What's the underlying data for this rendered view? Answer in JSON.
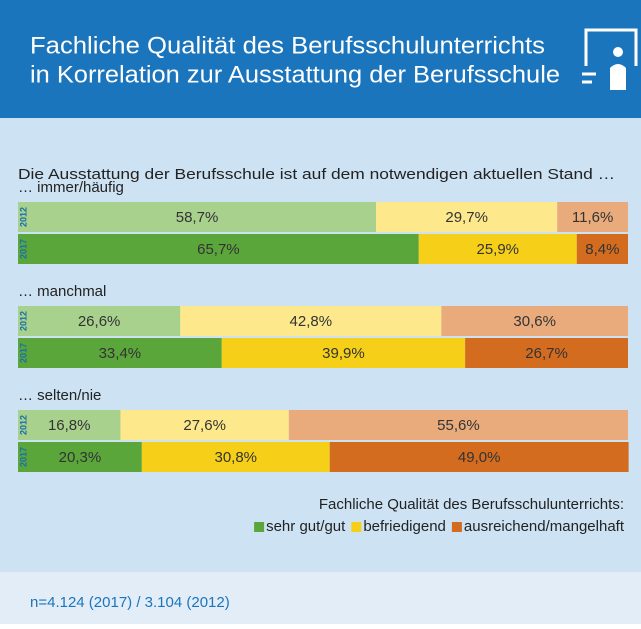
{
  "chart_data": {
    "type": "stacked_bar_horizontal",
    "title": [
      "Fachliche Qualität des Berufsschulunterrichts",
      "in Korrelation zur Ausstattung der Berufsschule"
    ],
    "subtitle": "Die Ausstattung der Berufsschule ist auf dem notwendigen aktuellen Stand …",
    "categories": [
      "… immer/häufig",
      "… manchmal",
      "… selten/nie"
    ],
    "groups": [
      "2012",
      "2017"
    ],
    "xlim": [
      0,
      100
    ],
    "series": [
      {
        "name": "sehr gut/gut",
        "colors": [
          "#a9d18e",
          "#5ba63b"
        ],
        "values": [
          [
            58.7,
            65.7
          ],
          [
            26.6,
            33.4
          ],
          [
            16.8,
            20.3
          ]
        ],
        "value_labels": [
          [
            "58,7%",
            "65,7%"
          ],
          [
            "26,6%",
            "33,4%"
          ],
          [
            "16,8%",
            "20,3%"
          ]
        ]
      },
      {
        "name": "befriedigend",
        "colors": [
          "#fde98c",
          "#f6d018"
        ],
        "values": [
          [
            29.7,
            25.9
          ],
          [
            42.8,
            39.9
          ],
          [
            27.6,
            30.8
          ]
        ],
        "value_labels": [
          [
            "29,7%",
            "25,9%"
          ],
          [
            "42,8%",
            "39,9%"
          ],
          [
            "27,6%",
            "30,8%"
          ]
        ]
      },
      {
        "name": "ausreichend/mangelhaft",
        "colors": [
          "#e9ab7c",
          "#d36c1f"
        ],
        "values": [
          [
            11.6,
            8.4
          ],
          [
            30.6,
            26.7
          ],
          [
            55.6,
            49.0
          ]
        ],
        "value_labels": [
          [
            "11,6%",
            "8,4%"
          ],
          [
            "30,6%",
            "26,7%"
          ],
          [
            "55,6%",
            "49,0%"
          ]
        ]
      }
    ],
    "legend_title": "Fachliche Qualität des Berufsschulunterrichts:",
    "note": "n=4.124 (2017) / 3.104 (2012)"
  }
}
